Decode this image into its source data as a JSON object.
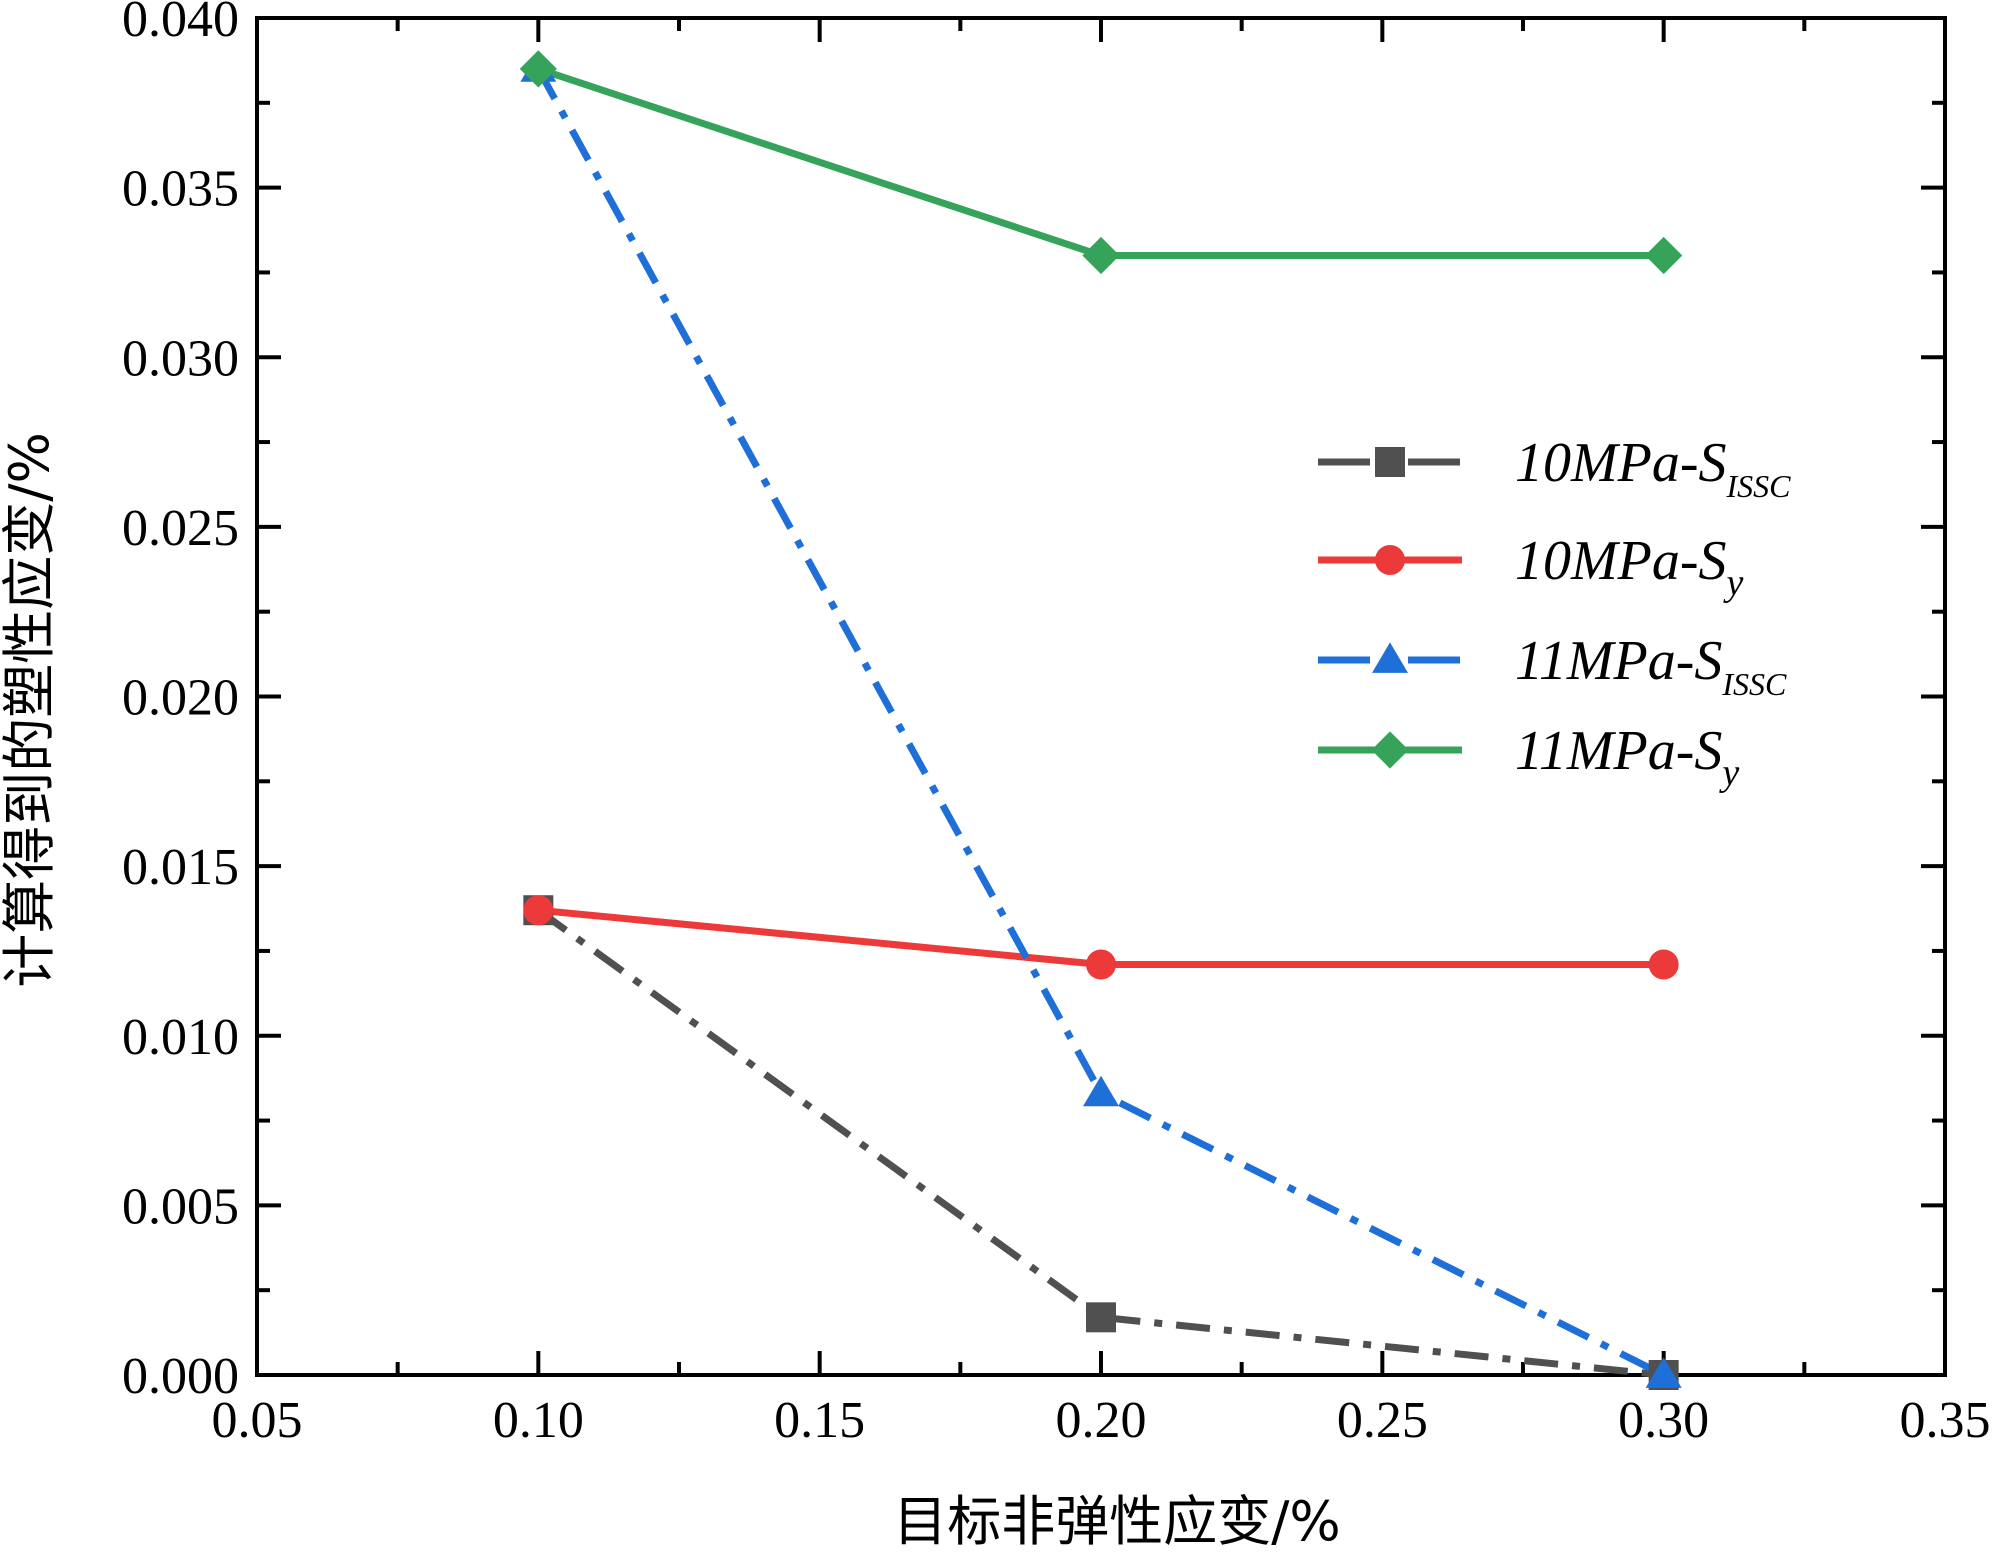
{
  "chart_data": {
    "type": "line",
    "title": "",
    "xlabel": "目标非弹性应变/%",
    "ylabel": "计算得到的塑性应变/%",
    "xlim": [
      0.05,
      0.35
    ],
    "ylim": [
      0.0,
      0.04
    ],
    "xticks": [
      "0.05",
      "0.10",
      "0.15",
      "0.20",
      "0.25",
      "0.30",
      "0.35"
    ],
    "yticks": [
      "0.000",
      "0.005",
      "0.010",
      "0.015",
      "0.020",
      "0.025",
      "0.030",
      "0.035",
      "0.040"
    ],
    "legend_position": "center-right",
    "grid": false,
    "series": [
      {
        "name": "10MPa-S",
        "subscript": "ISSC",
        "color": "#505050",
        "marker": "square",
        "dash": "dashdot",
        "x": [
          0.1,
          0.2,
          0.3
        ],
        "y": [
          0.0137,
          0.0017,
          0.0
        ]
      },
      {
        "name": "10MPa-S",
        "subscript": "y",
        "color": "#ec3a3a",
        "marker": "circle",
        "dash": "solid",
        "x": [
          0.1,
          0.2,
          0.3
        ],
        "y": [
          0.0137,
          0.0121,
          0.0121
        ]
      },
      {
        "name": "11MPa-S",
        "subscript": "ISSC",
        "color": "#1f6fd8",
        "marker": "triangle",
        "dash": "dashdot",
        "x": [
          0.1,
          0.2,
          0.3
        ],
        "y": [
          0.0385,
          0.0083,
          0.0
        ]
      },
      {
        "name": "11MPa-S",
        "subscript": "y",
        "color": "#36a35a",
        "marker": "diamond",
        "dash": "solid",
        "x": [
          0.1,
          0.2,
          0.3
        ],
        "y": [
          0.0385,
          0.033,
          0.033
        ]
      }
    ]
  }
}
